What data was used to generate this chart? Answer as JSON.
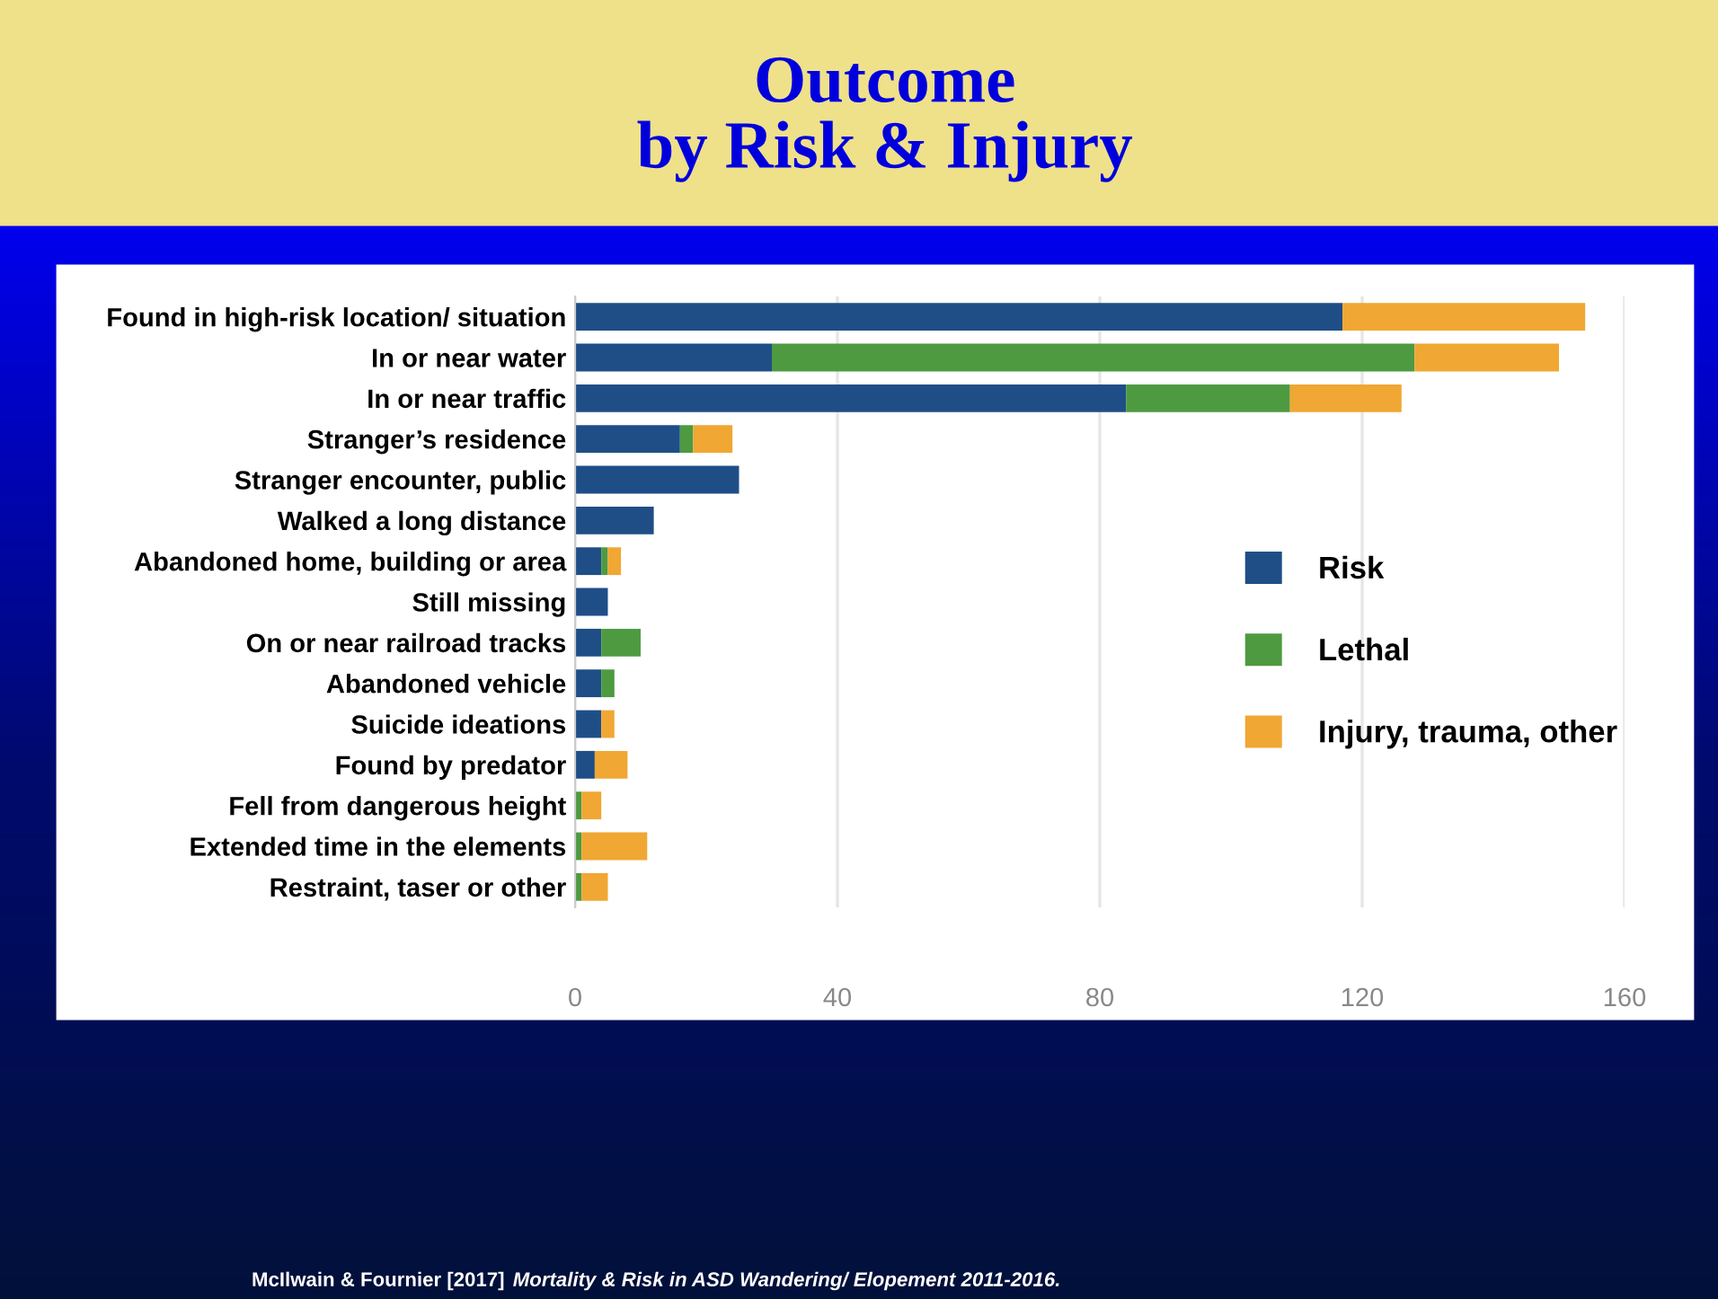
{
  "chart_data": {
    "type": "bar",
    "orientation": "horizontal",
    "stacked": true,
    "title": "Outcome\nby Risk & Injury",
    "categories": [
      "Found in high-risk location/ situation",
      "In or near water",
      "In or near traffic",
      "Stranger’s residence",
      "Stranger encounter, public",
      "Walked a long distance",
      "Abandoned home, building or area",
      "Still missing",
      "On or near railroad tracks",
      "Abandoned vehicle",
      "Suicide ideations",
      "Found by predator",
      "Fell from dangerous height",
      "Extended time in the elements",
      "Restraint, taser or other"
    ],
    "series": [
      {
        "name": "Risk",
        "color": "#1f4e87",
        "values": [
          117,
          30,
          84,
          16,
          25,
          12,
          4,
          5,
          4,
          4,
          4,
          3,
          0,
          0,
          0
        ]
      },
      {
        "name": "Lethal",
        "color": "#4e9a41",
        "values": [
          0,
          98,
          25,
          2,
          0,
          0,
          1,
          0,
          6,
          2,
          0,
          0,
          1,
          1,
          1
        ]
      },
      {
        "name": "Injury, trauma, other",
        "color": "#f0a733",
        "values": [
          37,
          22,
          17,
          6,
          0,
          0,
          2,
          0,
          0,
          0,
          2,
          5,
          3,
          10,
          4
        ]
      }
    ],
    "xlim": [
      0,
      160
    ],
    "xticks": [
      0,
      40,
      80,
      120,
      160
    ],
    "grid": "x",
    "legend": "right",
    "annotations": [
      "McIlwain & Fournier [2017]",
      "Mortality & Risk in ASD Wandering/ Elopement 2011-2016."
    ]
  }
}
